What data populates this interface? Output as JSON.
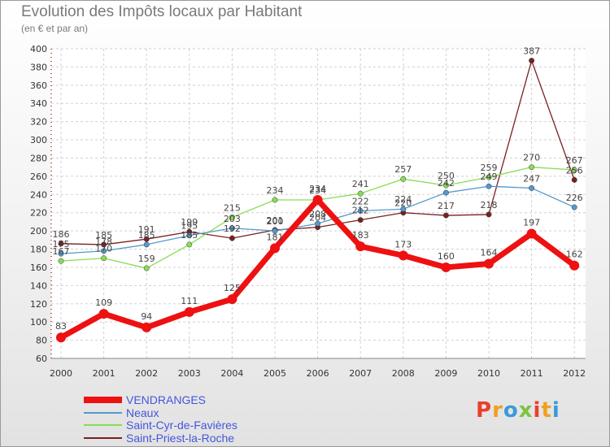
{
  "chart_data": {
    "type": "line",
    "title": "Evolution des Impôts locaux par Habitant",
    "subtitle": "(en € et par an)",
    "xlabel": "",
    "ylabel": "",
    "x": [
      "2000",
      "2001",
      "2002",
      "2003",
      "2004",
      "2005",
      "2006",
      "2007",
      "2008",
      "2009",
      "2010",
      "2011",
      "2012"
    ],
    "ylim": [
      60,
      400
    ],
    "yticks": [
      60,
      80,
      100,
      120,
      140,
      160,
      180,
      200,
      220,
      240,
      260,
      280,
      300,
      320,
      340,
      360,
      380,
      400
    ],
    "grid": true,
    "legend": "bottom-left",
    "series": [
      {
        "name": "VENDRANGES",
        "color": "#ee1111",
        "values": [
          83,
          109,
          94,
          111,
          125,
          181,
          234,
          183,
          173,
          160,
          164,
          197,
          162
        ]
      },
      {
        "name": "Neaux",
        "color": "#5599cc",
        "values": [
          175,
          178,
          185,
          195,
          203,
          200,
          208,
          222,
          224,
          242,
          249,
          247,
          226
        ]
      },
      {
        "name": "Saint-Cyr-de-Favières",
        "color": "#88dd55",
        "values": [
          167,
          170,
          159,
          185,
          215,
          234,
          234,
          241,
          257,
          250,
          259,
          270,
          267
        ]
      },
      {
        "name": "Saint-Priest-la-Roche",
        "color": "#772222",
        "values": [
          186,
          185,
          191,
          199,
          192,
          201,
          204,
          212,
          220,
          217,
          218,
          387,
          256
        ]
      }
    ]
  },
  "branding": {
    "logo_text": "Proxiti",
    "logo_colors": [
      "#e8402a",
      "#f0a020",
      "#3a9ad9",
      "#7cc242",
      "#e8402a",
      "#f0a020",
      "#3a9ad9"
    ]
  }
}
